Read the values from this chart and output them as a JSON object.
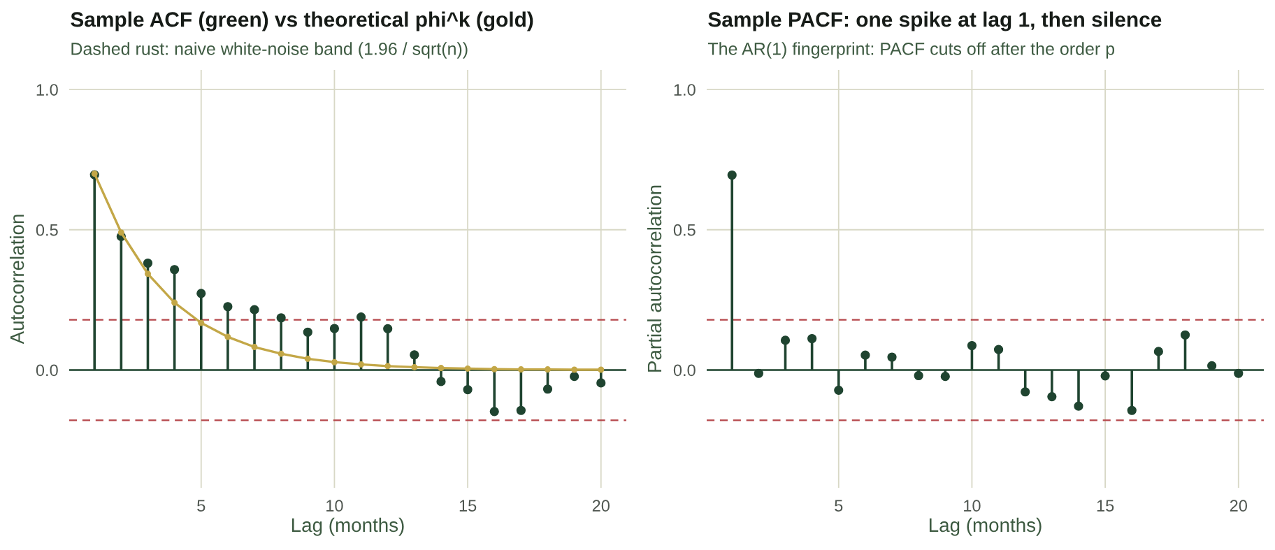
{
  "chart_data": [
    {
      "type": "lollipop",
      "title": "Sample ACF (green) vs theoretical phi^k (gold)",
      "subtitle": "Dashed rust: naive white-noise band (1.96 / sqrt(n))",
      "xlabel": "Lag (months)",
      "ylabel": "Autocorrelation",
      "x": [
        1,
        2,
        3,
        4,
        5,
        6,
        7,
        8,
        9,
        10,
        11,
        12,
        13,
        14,
        15,
        16,
        17,
        18,
        19,
        20
      ],
      "series": [
        {
          "type": "lollipop",
          "color": "#1f4430",
          "values": [
            0.696,
            0.476,
            0.381,
            0.358,
            0.273,
            0.226,
            0.215,
            0.186,
            0.135,
            0.148,
            0.189,
            0.147,
            0.054,
            -0.041,
            -0.07,
            -0.148,
            -0.144,
            -0.068,
            -0.023,
            -0.046
          ]
        },
        {
          "type": "line",
          "color": "#c3a747",
          "values": [
            0.7,
            0.49,
            0.343,
            0.24,
            0.168,
            0.118,
            0.082,
            0.058,
            0.04,
            0.028,
            0.02,
            0.014,
            0.01,
            0.007,
            0.005,
            0.003,
            0.002,
            0.002,
            0.001,
            0.001
          ]
        }
      ],
      "xlim": [
        0.05,
        20.95
      ],
      "xticks": [
        5,
        10,
        15,
        20
      ],
      "ylim": [
        -0.42,
        1.07
      ],
      "yticks": [
        {
          "value": 0,
          "label": "0.0"
        },
        {
          "value": 0.5,
          "label": "0.5"
        },
        {
          "value": 1,
          "label": "1.0"
        }
      ],
      "ref_lines": [
        {
          "axis": "y",
          "value": 0.179,
          "color": "#b5474b",
          "line_style": "dashed"
        },
        {
          "axis": "y",
          "value": -0.179,
          "color": "#b5474b",
          "line_style": "dashed"
        }
      ],
      "grid": true,
      "marker": "circle"
    },
    {
      "type": "lollipop",
      "title": "Sample PACF: one spike at lag 1, then silence",
      "subtitle": "The AR(1) fingerprint: PACF cuts off after the order p",
      "xlabel": "Lag (months)",
      "ylabel": "Partial autocorrelation",
      "x": [
        1,
        2,
        3,
        4,
        5,
        6,
        7,
        8,
        9,
        10,
        11,
        12,
        13,
        14,
        15,
        16,
        17,
        18,
        19,
        20
      ],
      "series": [
        {
          "type": "lollipop",
          "color": "#1f4430",
          "values": [
            0.695,
            -0.012,
            0.106,
            0.112,
            -0.072,
            0.053,
            0.046,
            -0.02,
            -0.023,
            0.087,
            0.073,
            -0.078,
            -0.095,
            -0.129,
            -0.021,
            -0.144,
            0.066,
            0.125,
            0.015,
            -0.012
          ]
        }
      ],
      "xlim": [
        0.05,
        20.95
      ],
      "xticks": [
        5,
        10,
        15,
        20
      ],
      "ylim": [
        -0.42,
        1.07
      ],
      "yticks": [
        {
          "value": 0,
          "label": "0.0"
        },
        {
          "value": 0.5,
          "label": "0.5"
        },
        {
          "value": 1,
          "label": "1.0"
        }
      ],
      "ref_lines": [
        {
          "axis": "y",
          "value": 0.179,
          "color": "#b5474b",
          "line_style": "dashed"
        },
        {
          "axis": "y",
          "value": -0.179,
          "color": "#b5474b",
          "line_style": "dashed"
        }
      ],
      "grid": true,
      "marker": "circle"
    }
  ]
}
